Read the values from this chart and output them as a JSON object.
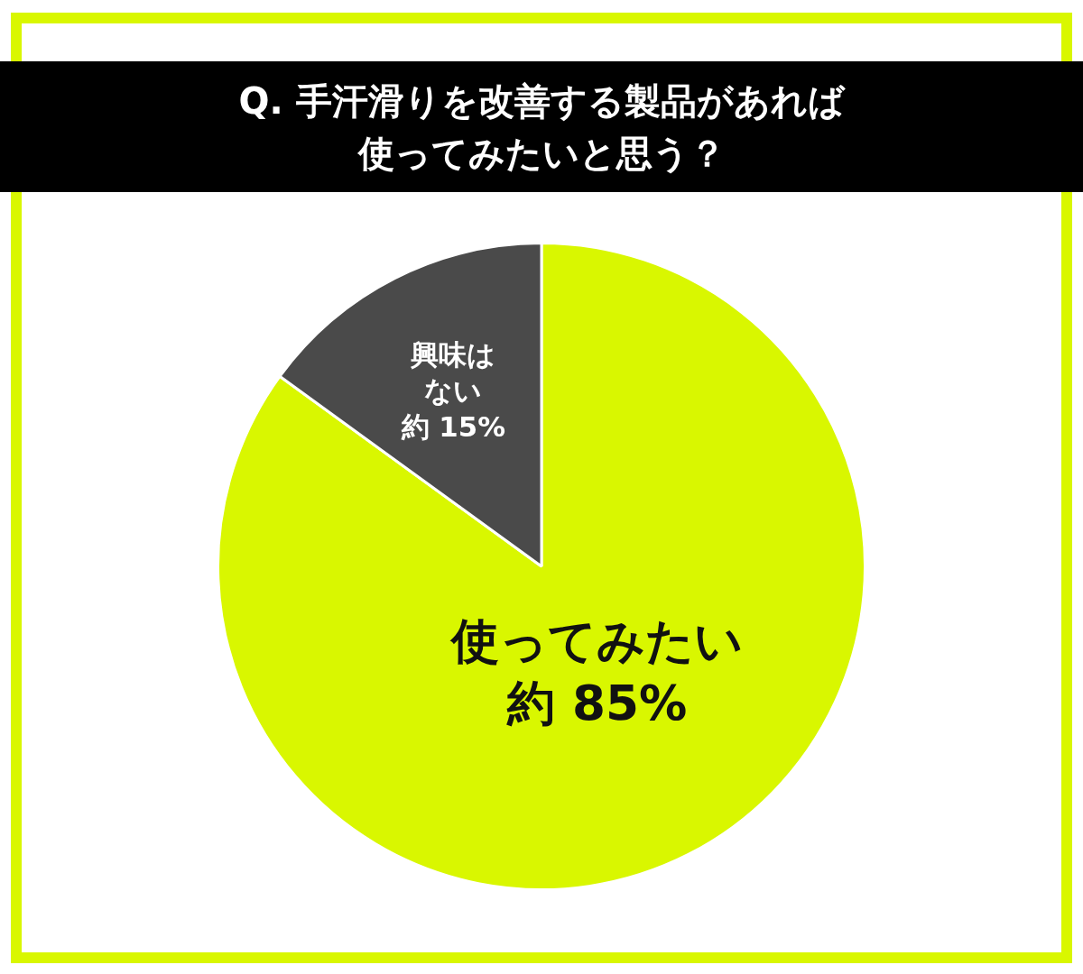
{
  "chart_data": {
    "type": "pie",
    "title": "Q. 手汗滑りを改善する製品があれば使ってみたいと思う？",
    "categories": [
      "使ってみたい",
      "興味はない"
    ],
    "values": [
      85,
      15
    ],
    "colors": [
      "#d9f700",
      "#4a4a4a"
    ],
    "value_labels": [
      "約 85%",
      "約 15%"
    ],
    "legend": false
  }
}
